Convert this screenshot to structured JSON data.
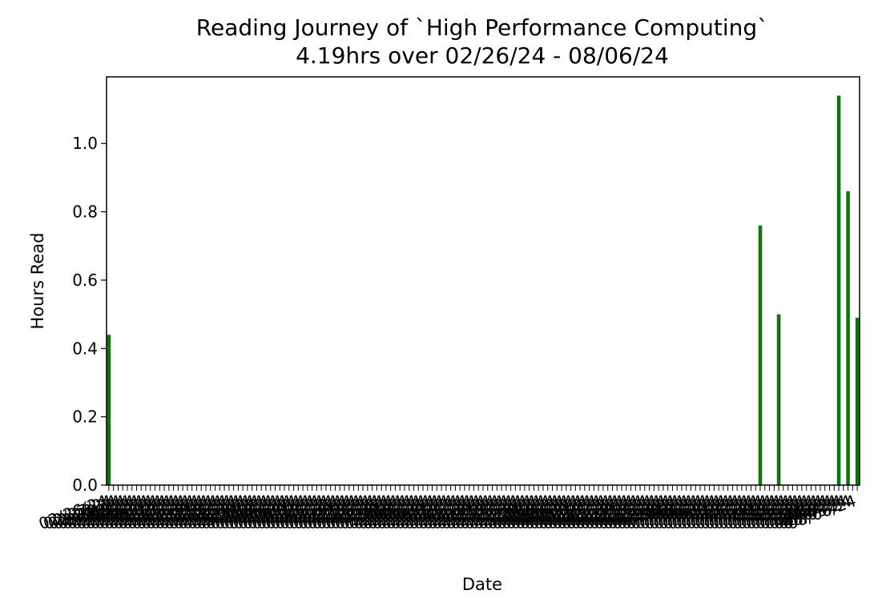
{
  "chart_data": {
    "type": "bar",
    "title": "Reading Journey of `High Performance Computing`",
    "subtitle": "4.19hrs over 02/26/24 - 08/06/24",
    "xlabel": "Date",
    "ylabel": "Hours Read",
    "ylim": [
      0,
      1.195
    ],
    "yticks": [
      0.0,
      0.2,
      0.4,
      0.6,
      0.8,
      1.0
    ],
    "ytick_labels": [
      "0.0",
      "0.2",
      "0.4",
      "0.6",
      "0.8",
      "1.0"
    ],
    "bar_color": "#127212",
    "x_start": "2024-02-26",
    "x_end": "2024-08-06",
    "points": [
      {
        "date": "2024-02-26",
        "value": 0.44
      },
      {
        "date": "2024-07-16",
        "value": 0.76
      },
      {
        "date": "2024-07-20",
        "value": 0.5
      },
      {
        "date": "2024-08-02",
        "value": 1.14
      },
      {
        "date": "2024-08-04",
        "value": 0.86
      },
      {
        "date": "2024-08-06",
        "value": 0.49
      }
    ],
    "grid": false,
    "legend": "none"
  }
}
